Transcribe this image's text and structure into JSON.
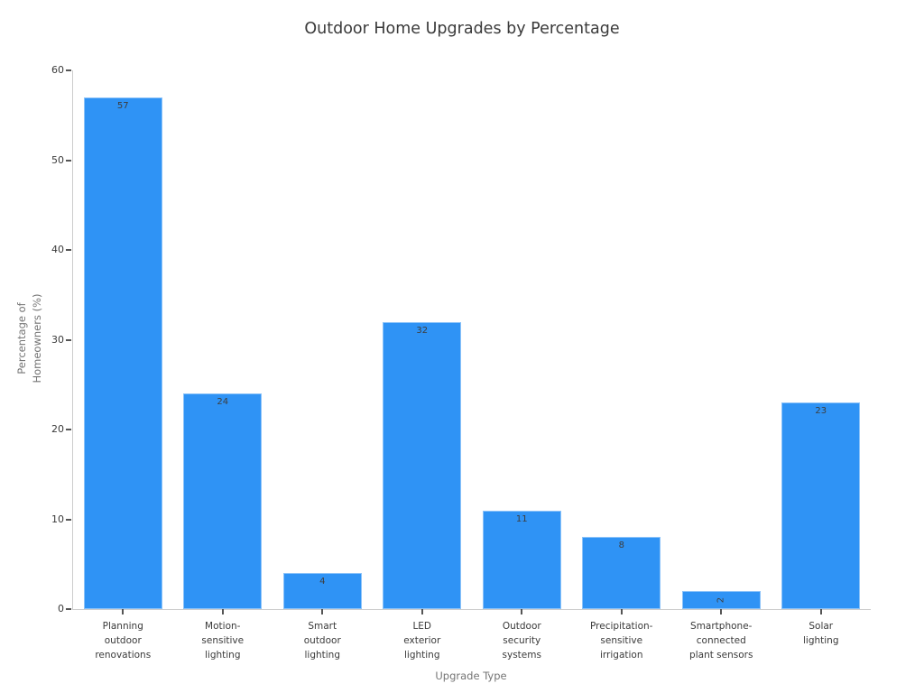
{
  "chart_data": {
    "type": "bar",
    "title": "Outdoor Home Upgrades by Percentage",
    "xlabel": "Upgrade Type",
    "ylabel": "Percentage of Homeowners (%)",
    "ylabel_lines": [
      "Percentage of",
      "Homeowners (%)"
    ],
    "categories": [
      {
        "label": "Planning outdoor renovations",
        "lines": [
          "Planning",
          "outdoor",
          "renovations"
        ]
      },
      {
        "label": "Motion-sensitive lighting",
        "lines": [
          "Motion-",
          "sensitive",
          "lighting"
        ]
      },
      {
        "label": "Smart outdoor lighting",
        "lines": [
          "Smart",
          "outdoor",
          "lighting"
        ]
      },
      {
        "label": "LED exterior lighting",
        "lines": [
          "LED",
          "exterior",
          "lighting"
        ]
      },
      {
        "label": "Outdoor security systems",
        "lines": [
          "Outdoor",
          "security",
          "systems"
        ]
      },
      {
        "label": "Precipitation-sensitive irrigation",
        "lines": [
          "Precipitation-",
          "sensitive",
          "irrigation"
        ]
      },
      {
        "label": "Smartphone-connected plant sensors",
        "lines": [
          "Smartphone-",
          "connected",
          "plant sensors"
        ]
      },
      {
        "label": "Solar lighting",
        "lines": [
          "Solar",
          "lighting"
        ]
      }
    ],
    "values": [
      57,
      24,
      4,
      32,
      11,
      8,
      2,
      23
    ],
    "value_labels": [
      "57",
      "24",
      "4",
      "32",
      "11",
      "8",
      "2",
      "23"
    ],
    "rotated_value_labels": [
      false,
      false,
      false,
      false,
      false,
      false,
      true,
      false
    ],
    "ylim": [
      0,
      60
    ],
    "yticks": [
      0,
      10,
      20,
      30,
      40,
      50,
      60
    ],
    "grid": false,
    "legend": null
  },
  "colors": {
    "bar": "#2F93F5",
    "title_text": "#3a3a3a",
    "tick_label_text": "#3a3a3a",
    "axis_title_text": "#757575",
    "spine": "#cccccc",
    "tick_mark": "#555555",
    "value_label_text": "#3d3d3d",
    "background": "#ffffff"
  }
}
